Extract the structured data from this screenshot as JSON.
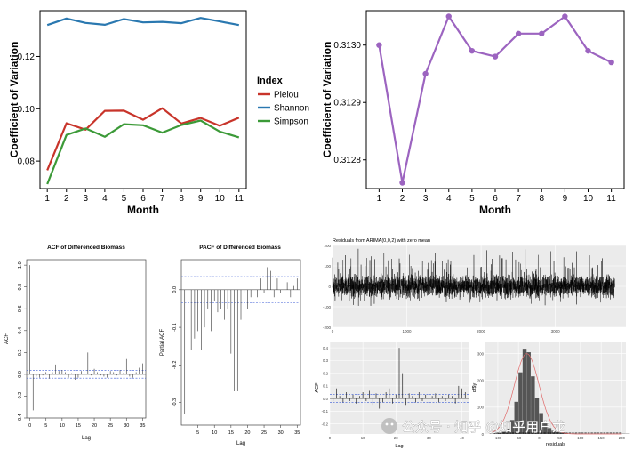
{
  "chart_data": [
    {
      "type": "line",
      "x": [
        1,
        2,
        3,
        4,
        5,
        6,
        7,
        8,
        9,
        10,
        11
      ],
      "xlabel": "Month",
      "ylabel": "Coefficient of Variation",
      "yticks": [
        0.08,
        0.1,
        0.12
      ],
      "ytick_labels": [
        "0.08",
        "0.10",
        "0.12"
      ],
      "ylim": [
        0.0695,
        0.1375
      ],
      "legend_title": "Index",
      "legend_position": "right",
      "grid": false,
      "series": [
        {
          "name": "Pielou",
          "color": "#c8342a",
          "values": [
            0.0765,
            0.0945,
            0.092,
            0.0992,
            0.0993,
            0.0958,
            0.1002,
            0.0944,
            0.0965,
            0.0935,
            0.0966
          ]
        },
        {
          "name": "Shannon",
          "color": "#2a78b0",
          "values": [
            0.132,
            0.1345,
            0.1328,
            0.1321,
            0.1343,
            0.133,
            0.1332,
            0.1327,
            0.1347,
            0.1334,
            0.132
          ]
        },
        {
          "name": "Simpson",
          "color": "#3c9a38",
          "values": [
            0.0712,
            0.09,
            0.0925,
            0.0893,
            0.0941,
            0.0937,
            0.0909,
            0.0938,
            0.0955,
            0.0913,
            0.0891
          ]
        }
      ]
    },
    {
      "type": "line",
      "x": [
        1,
        2,
        3,
        4,
        5,
        6,
        7,
        8,
        9,
        10,
        11
      ],
      "xlabel": "Month",
      "ylabel": "Coefficient of Variation",
      "yticks": [
        0.3128,
        0.3129,
        0.313
      ],
      "ytick_labels": [
        "0.3128",
        "0.3129",
        "0.3130"
      ],
      "ylim": [
        0.31275,
        0.31306
      ],
      "grid": false,
      "series": [
        {
          "color": "#9c64c0",
          "values": [
            0.313,
            0.31276,
            0.31295,
            0.31305,
            0.31299,
            0.31298,
            0.31302,
            0.31302,
            0.31305,
            0.31299,
            0.31297
          ]
        }
      ]
    },
    {
      "type": "bar",
      "title": "ACF of Differenced Biomass",
      "xlabel": "Lag",
      "ylabel": "ACF",
      "ylim": [
        -0.4,
        1.05
      ],
      "yticks": [
        -0.4,
        -0.2,
        0.0,
        0.2,
        0.4,
        0.6,
        0.8,
        1.0
      ],
      "ytick_labels": [
        "-0.4",
        "-0.2",
        "0.0",
        "0.2",
        "0.4",
        "0.6",
        "0.8",
        "1.0"
      ],
      "xticks": [
        0,
        5,
        10,
        15,
        20,
        25,
        30,
        35
      ],
      "xlim": [
        -1,
        36
      ],
      "conf_band": 0.035,
      "lags": [
        0,
        1,
        2,
        3,
        4,
        5,
        6,
        7,
        8,
        9,
        10,
        11,
        12,
        13,
        14,
        15,
        16,
        17,
        18,
        19,
        20,
        21,
        22,
        23,
        24,
        25,
        26,
        27,
        28,
        29,
        30,
        31,
        32,
        33,
        34,
        35
      ],
      "values": [
        1.0,
        -0.33,
        -0.02,
        -0.03,
        -0.01,
        0.02,
        -0.04,
        0.02,
        0.09,
        0.03,
        0.04,
        0.02,
        -0.03,
        0.01,
        -0.05,
        -0.03,
        0.03,
        0.0,
        0.2,
        -0.01,
        0.05,
        0.02,
        -0.01,
        -0.02,
        -0.03,
        0.03,
        0.02,
        -0.01,
        0.04,
        0.01,
        0.14,
        -0.02,
        -0.03,
        0.02,
        0.06,
        0.1
      ]
    },
    {
      "type": "bar",
      "title": "PACF of Differenced Biomass",
      "xlabel": "Lag",
      "ylabel": "Partial ACF",
      "ylim": [
        -0.36,
        0.08
      ],
      "yticks": [
        -0.3,
        -0.2,
        -0.1,
        0.0
      ],
      "ytick_labels": [
        "-0.3",
        "-0.2",
        "-0.1",
        "0.0"
      ],
      "xticks": [
        5,
        10,
        15,
        20,
        25,
        30,
        35
      ],
      "xlim": [
        0,
        36
      ],
      "conf_band": 0.035,
      "lags": [
        1,
        2,
        3,
        4,
        5,
        6,
        7,
        8,
        9,
        10,
        11,
        12,
        13,
        14,
        15,
        16,
        17,
        18,
        19,
        20,
        21,
        22,
        23,
        24,
        25,
        26,
        27,
        28,
        29,
        30,
        31,
        32,
        33,
        34,
        35
      ],
      "values": [
        -0.33,
        -0.21,
        -0.16,
        -0.13,
        -0.11,
        -0.16,
        -0.1,
        -0.05,
        -0.11,
        -0.03,
        -0.06,
        -0.05,
        -0.08,
        -0.05,
        -0.17,
        -0.27,
        -0.27,
        -0.08,
        -0.01,
        -0.05,
        -0.02,
        0.0,
        -0.02,
        0.03,
        -0.01,
        0.06,
        0.05,
        -0.02,
        0.03,
        -0.01,
        0.05,
        0.02,
        -0.02,
        0.01,
        0.03
      ]
    },
    {
      "type": "line",
      "title": "Residuals from ARIMA(0,0,2) with zero mean",
      "ylim": [
        -200,
        200
      ],
      "yticks": [
        -200,
        -100,
        0,
        100,
        200
      ],
      "ytick_labels": [
        "-200",
        "-100",
        "0",
        "100",
        "200"
      ],
      "xticks": [
        0,
        1000,
        2000,
        3000
      ],
      "xlim": [
        0,
        3950
      ],
      "n_points": 3800,
      "series_color": "#000000"
    },
    {
      "type": "bar",
      "xlabel": "Lag",
      "ylabel": "ACF",
      "ylim": [
        -0.28,
        0.45
      ],
      "yticks": [
        -0.2,
        -0.1,
        0.0,
        0.1,
        0.2,
        0.3,
        0.4
      ],
      "ytick_labels": [
        "-0.2",
        "-0.1",
        "0.0",
        "0.1",
        "0.2",
        "0.3",
        "0.4"
      ],
      "xticks": [
        0,
        10,
        20,
        30,
        40
      ],
      "xlim": [
        0,
        42
      ],
      "conf_band": 0.032,
      "lags": [
        1,
        2,
        3,
        4,
        5,
        6,
        7,
        8,
        9,
        10,
        11,
        12,
        13,
        14,
        15,
        16,
        17,
        18,
        19,
        20,
        21,
        22,
        23,
        24,
        25,
        26,
        27,
        28,
        29,
        30,
        31,
        32,
        33,
        34,
        35,
        36,
        37,
        38,
        39,
        40,
        41
      ],
      "values": [
        -0.02,
        0.08,
        0.02,
        -0.03,
        0.05,
        -0.02,
        0.03,
        -0.04,
        0.02,
        0.05,
        -0.02,
        0.06,
        -0.05,
        0.04,
        -0.08,
        -0.03,
        0.05,
        0.08,
        -0.04,
        0.03,
        0.4,
        0.2,
        -0.05,
        0.04,
        0.02,
        -0.03,
        0.05,
        -0.02,
        0.03,
        -0.04,
        0.02,
        0.04,
        -0.03,
        0.02,
        -0.02,
        0.03,
        0.02,
        -0.04,
        0.1,
        0.08,
        0.05
      ]
    },
    {
      "type": "histogram",
      "xlabel": "residuals",
      "ylabel": "df$y",
      "xticks": [
        -100,
        -50,
        0,
        50,
        100,
        150,
        200
      ],
      "xlim": [
        -130,
        210
      ],
      "yticks": [
        0,
        100,
        200,
        300
      ],
      "ylim": [
        0,
        345
      ],
      "bin_width": 10,
      "bins_start": -120,
      "counts": [
        1,
        2,
        4,
        8,
        20,
        52,
        120,
        230,
        318,
        305,
        215,
        135,
        78,
        42,
        22,
        12,
        7,
        4,
        3,
        2,
        2,
        1,
        1,
        1,
        1,
        1,
        1,
        1,
        1,
        1,
        1,
        1,
        1,
        1
      ],
      "bar_color": "#555555",
      "density_color": "#e06a6a"
    }
  ],
  "watermark": {
    "text": "公众号 · 知乎 @知乎用户龙",
    "color": "#ffffff"
  }
}
